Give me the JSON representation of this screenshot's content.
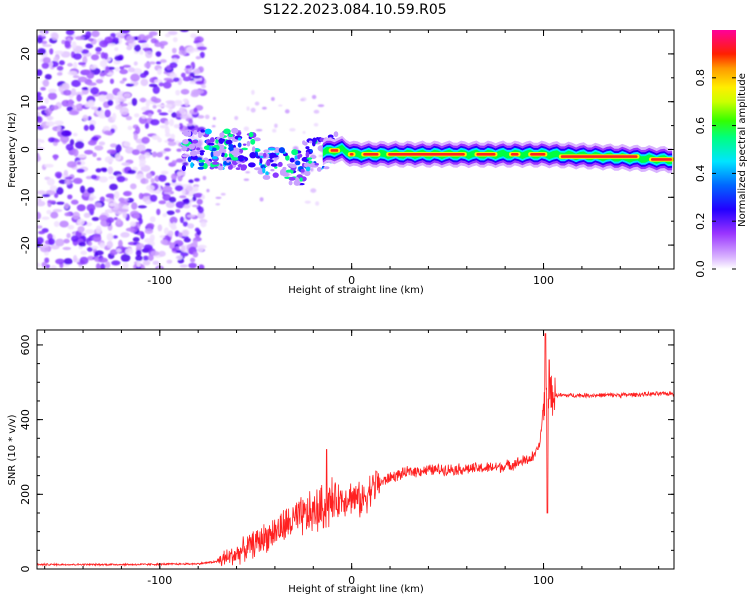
{
  "figure": {
    "title": "S122.2023.084.10.59.R05"
  },
  "chart_data": [
    {
      "type": "heatmap",
      "xlabel": "Height of straight line (km)",
      "ylabel": "Frequency (Hz)",
      "xlim": [
        -164,
        168
      ],
      "ylim": [
        -25,
        25
      ],
      "x_ticks": [
        -100,
        0,
        100
      ],
      "y_ticks": [
        -20,
        -10,
        0,
        10,
        20
      ],
      "colorbar": {
        "label": "Normalized spectral amplitude",
        "range": [
          0,
          1
        ],
        "ticks": [
          "0.0",
          "0.2",
          "0.4",
          "0.6",
          "0.8"
        ],
        "colormap": "rainbow (white-violet-blue-cyan-green-yellow-orange-red-magenta)"
      },
      "features": {
        "noise_region_x": [
          -164,
          -85
        ],
        "signal_line_frequency_hz": [
          [
            -85,
            0
          ],
          [
            -60,
            0
          ],
          [
            -40,
            -1
          ],
          [
            -25,
            -2
          ],
          [
            -15,
            -0.5
          ],
          [
            -5,
            0
          ],
          [
            0,
            -1
          ],
          [
            20,
            -1
          ],
          [
            60,
            -1
          ],
          [
            100,
            -1
          ],
          [
            130,
            -1.5
          ],
          [
            168,
            -2.2
          ]
        ]
      },
      "colors": {
        "violet": "#9933ff",
        "blue": "#3300ff",
        "cyan": "#00e5ff",
        "green": "#00ff40",
        "yellow": "#ffff00",
        "red": "#ff2020"
      }
    },
    {
      "type": "line",
      "xlabel": "Height of straight line (km)",
      "ylabel": "SNR (10 * v/v)",
      "xlim": [
        -164,
        168
      ],
      "ylim": [
        0,
        640
      ],
      "x_ticks": [
        -100,
        0,
        100
      ],
      "y_ticks": [
        0,
        200,
        400,
        600
      ],
      "series": [
        {
          "color": "#ff2020",
          "trend": [
            [
              -164,
              12
            ],
            [
              -110,
              12
            ],
            [
              -80,
              14
            ],
            [
              -70,
              20
            ],
            [
              -60,
              40
            ],
            [
              -50,
              70
            ],
            [
              -40,
              100
            ],
            [
              -30,
              130
            ],
            [
              -20,
              150
            ],
            [
              -10,
              180
            ],
            [
              0,
              195
            ],
            [
              5,
              180
            ],
            [
              10,
              215
            ],
            [
              20,
              245
            ],
            [
              30,
              260
            ],
            [
              40,
              265
            ],
            [
              60,
              268
            ],
            [
              70,
              270
            ],
            [
              80,
              275
            ],
            [
              90,
              290
            ],
            [
              95,
              300
            ],
            [
              98,
              330
            ],
            [
              100,
              440
            ],
            [
              102,
              470
            ],
            [
              104,
              465
            ],
            [
              120,
              465
            ],
            [
              140,
              466
            ],
            [
              168,
              470
            ]
          ],
          "spikes": [
            [
              -13,
              320
            ],
            [
              13,
              260
            ],
            [
              97,
              320
            ],
            [
              101,
              630
            ],
            [
              102,
              150
            ],
            [
              103,
              560
            ]
          ]
        }
      ]
    }
  ]
}
